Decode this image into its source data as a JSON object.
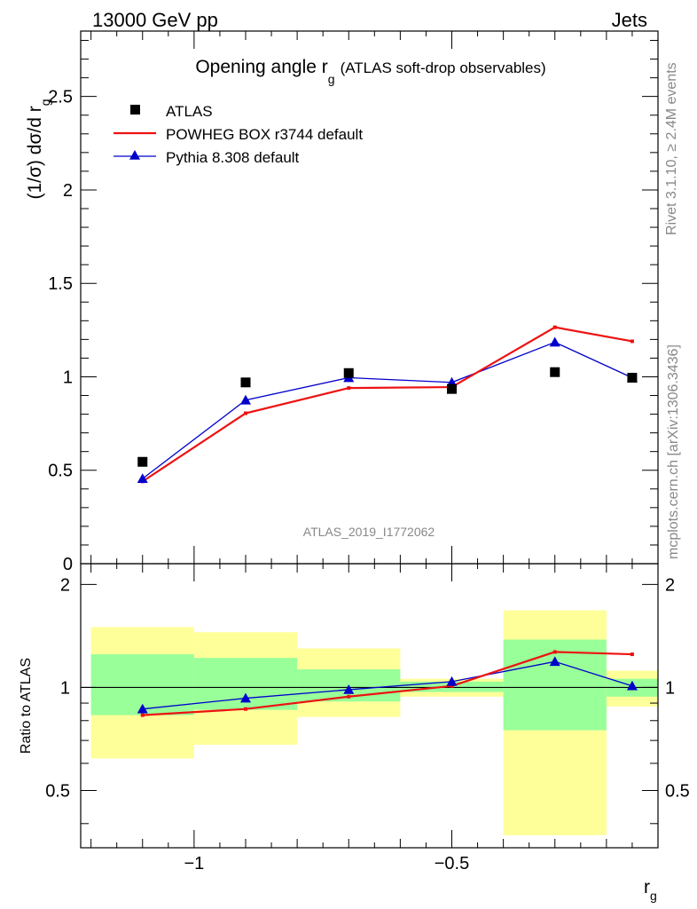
{
  "header": {
    "left": "13000 GeV pp",
    "right": "Jets"
  },
  "title": {
    "main": "Opening angle r",
    "sub": "g",
    "extra": "(ATLAS soft-drop observables)"
  },
  "side_labels": {
    "rivet": "Rivet 3.1.10, ≥ 2.4M events",
    "mcplots": "mcplots.cern.ch [arXiv:1306.3436]"
  },
  "watermark": "ATLAS_2019_I1772062",
  "colors": {
    "atlas": "#000000",
    "powheg": "#ee1111",
    "pythia": "#0000cc",
    "band_outer": "#ffff99",
    "band_inner": "#99ff99"
  },
  "chart_data": [
    {
      "type": "scatter",
      "panel": "main",
      "ylabel": "(1/σ) dσ/d r",
      "ylabel_sub": "g",
      "xlim": [
        -1.22,
        -0.1
      ],
      "ylim": [
        0,
        2.85
      ],
      "yticks": [
        0,
        0.5,
        1,
        1.5,
        2,
        2.5
      ],
      "ytick_labels": [
        "0",
        "0.5",
        "1",
        "1.5",
        "2",
        "2.5"
      ],
      "legend_position": "top-left",
      "x": [
        -1.1,
        -0.9,
        -0.7,
        -0.5,
        -0.3,
        -0.15
      ],
      "series": [
        {
          "name": "ATLAS",
          "style": "marker-square",
          "values": [
            0.545,
            0.97,
            1.02,
            0.935,
            1.025,
            0.995
          ]
        },
        {
          "name": "POWHEG BOX r3744 default",
          "style": "line-red",
          "values": [
            0.44,
            0.805,
            0.94,
            0.945,
            1.265,
            1.19
          ]
        },
        {
          "name": "Pythia 8.308 default",
          "style": "line-blue-triangle",
          "values": [
            0.455,
            0.875,
            0.995,
            0.97,
            1.185,
            0.995
          ]
        }
      ]
    },
    {
      "type": "line",
      "panel": "ratio",
      "ylabel": "Ratio to ATLAS",
      "xlabel": "r",
      "xlabel_sub": "g",
      "xlim": [
        -1.22,
        -0.1
      ],
      "ylim": [
        0.34,
        2.3
      ],
      "yticks": [
        0.5,
        1,
        2
      ],
      "ytick_labels": [
        "0.5",
        "1",
        "2"
      ],
      "xticks": [
        -1,
        -0.5
      ],
      "xtick_labels": [
        "−1",
        "−0.5"
      ],
      "x": [
        -1.1,
        -0.9,
        -0.7,
        -0.5,
        -0.3,
        -0.15
      ],
      "bins": [
        [
          -1.2,
          -1.0
        ],
        [
          -1.0,
          -0.8
        ],
        [
          -0.8,
          -0.6
        ],
        [
          -0.6,
          -0.4
        ],
        [
          -0.4,
          -0.2
        ],
        [
          -0.2,
          -0.1
        ]
      ],
      "band_outer": [
        [
          0.62,
          1.5
        ],
        [
          0.68,
          1.45
        ],
        [
          0.82,
          1.3
        ],
        [
          0.94,
          1.06
        ],
        [
          0.37,
          1.68
        ],
        [
          0.88,
          1.12
        ]
      ],
      "band_inner": [
        [
          0.83,
          1.25
        ],
        [
          0.86,
          1.22
        ],
        [
          0.91,
          1.13
        ],
        [
          0.97,
          1.04
        ],
        [
          0.75,
          1.38
        ],
        [
          0.94,
          1.06
        ]
      ],
      "series": [
        {
          "name": "POWHEG BOX r3744 default",
          "values": [
            0.83,
            0.865,
            0.94,
            1.01,
            1.27,
            1.25
          ]
        },
        {
          "name": "Pythia 8.308 default",
          "values": [
            0.865,
            0.93,
            0.985,
            1.04,
            1.19,
            1.01
          ]
        }
      ]
    }
  ]
}
